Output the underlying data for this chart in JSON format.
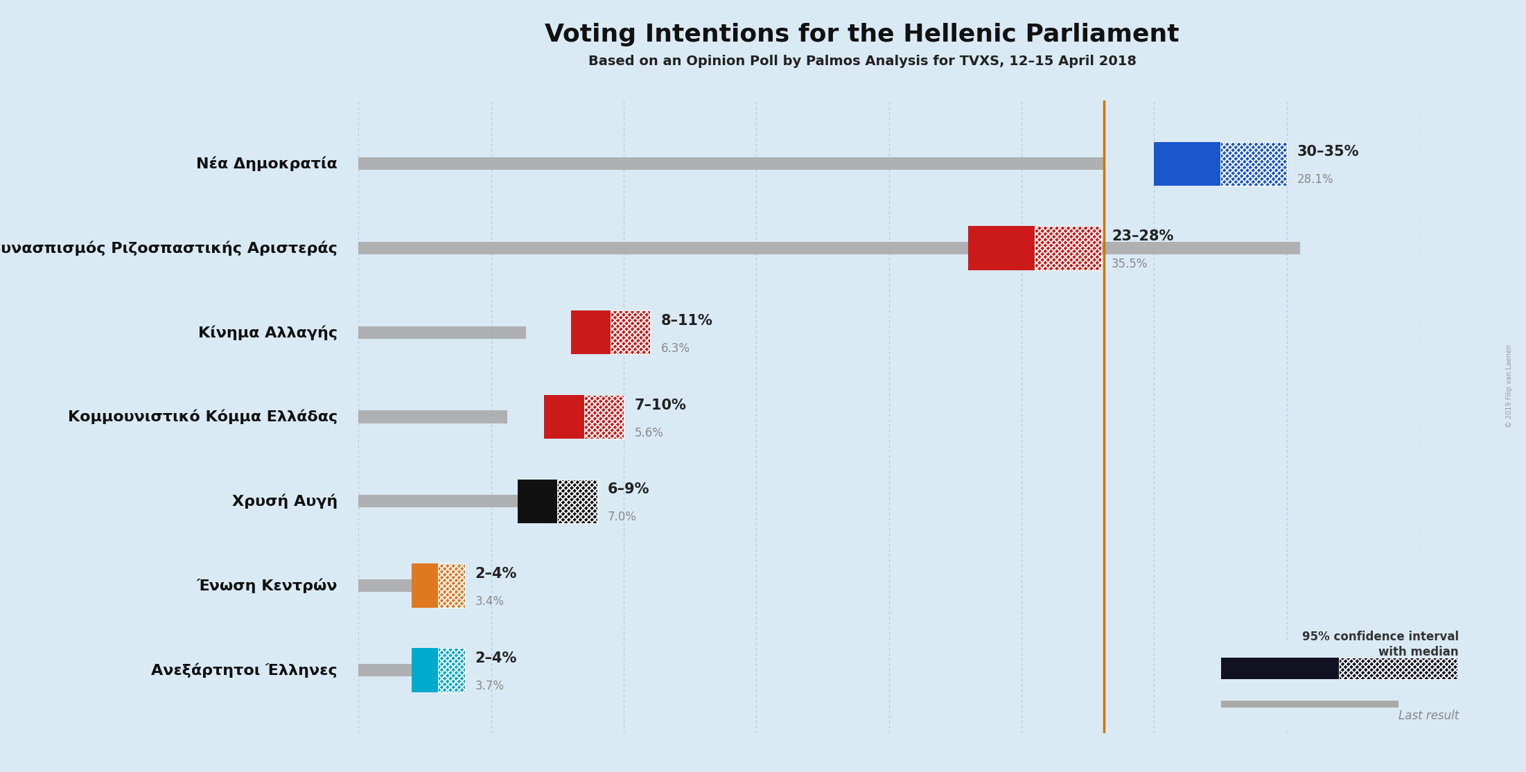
{
  "title": "Voting Intentions for the Hellenic Parliament",
  "subtitle": "Based on an Opinion Poll by Palmos Analysis for TVXS, 12–15 April 2018",
  "background_color": "#daeaf5",
  "parties": [
    {
      "name": "Νέα Δημοκρατία",
      "ci_low": 30,
      "ci_high": 35,
      "median": 32.5,
      "last_result": 28.1,
      "color": "#1a56cc",
      "label": "30–35%",
      "last_label": "28.1%"
    },
    {
      "name": "Συνασπισμός Ριζοσπαστικής Αριστεράς",
      "ci_low": 23,
      "ci_high": 28,
      "median": 25.5,
      "last_result": 35.5,
      "color": "#cc1a1a",
      "label": "23–28%",
      "last_label": "35.5%"
    },
    {
      "name": "Κίνημα Αλλαγής",
      "ci_low": 8,
      "ci_high": 11,
      "median": 9.5,
      "last_result": 6.3,
      "color": "#cc1a1a",
      "label": "8–11%",
      "last_label": "6.3%"
    },
    {
      "name": "Κομμουνιστικό Κόμμα Ελλάδας",
      "ci_low": 7,
      "ci_high": 10,
      "median": 8.5,
      "last_result": 5.6,
      "color": "#cc1a1a",
      "label": "7–10%",
      "last_label": "5.6%"
    },
    {
      "name": "Χρυσή Αυγή",
      "ci_low": 6,
      "ci_high": 9,
      "median": 7.5,
      "last_result": 7.0,
      "color": "#111111",
      "label": "6–9%",
      "last_label": "7.0%"
    },
    {
      "name": "Ένωση Κεντρών",
      "ci_low": 2,
      "ci_high": 4,
      "median": 3.0,
      "last_result": 3.4,
      "color": "#e07820",
      "label": "2–4%",
      "last_label": "3.4%"
    },
    {
      "name": "Ανεξάρτητοι Έλληνες",
      "ci_low": 2,
      "ci_high": 4,
      "median": 3.0,
      "last_result": 3.7,
      "color": "#00aacc",
      "label": "2–4%",
      "last_label": "3.7%"
    }
  ],
  "vline_x": 28.1,
  "vline_color": "#cc7700",
  "xlim": [
    0,
    40
  ],
  "grid_color": "#b0c8e0",
  "last_result_color": "#aaaaaa",
  "legend_ci_color": "#111122",
  "copyright": "© 2019 Filip van Laenen"
}
